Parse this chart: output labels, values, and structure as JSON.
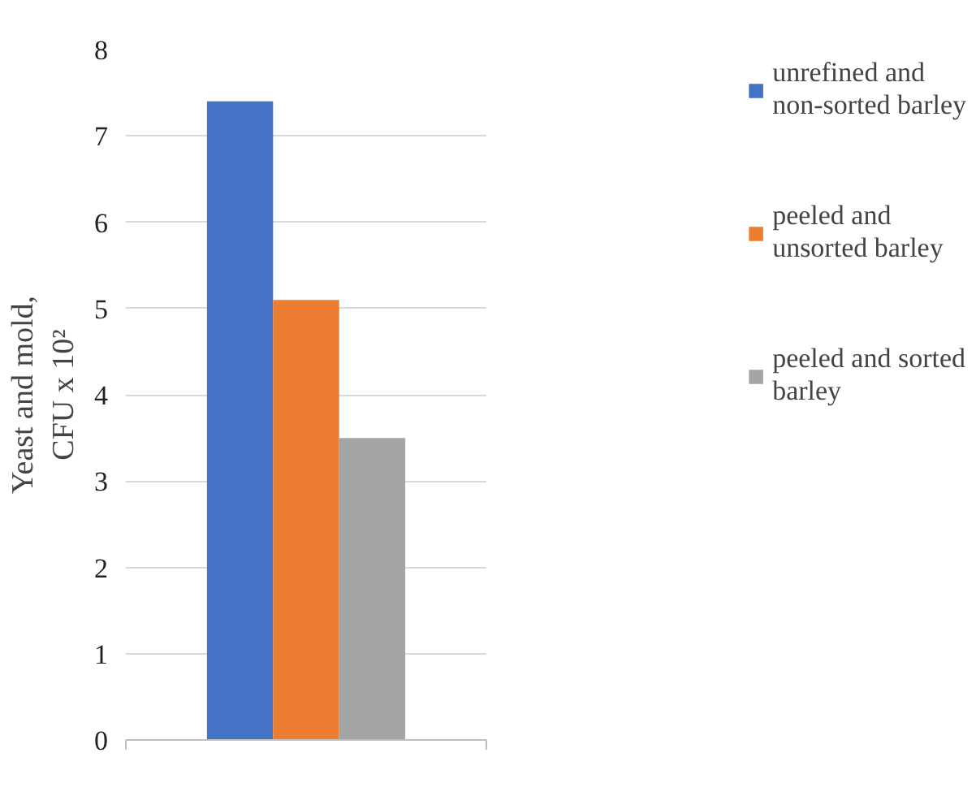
{
  "chart_data": {
    "type": "bar",
    "ylabel": "Yeast and mold, CFU x 10²",
    "categories": [
      null
    ],
    "series": [
      {
        "name": "unrefined and non-sorted barley",
        "color": "#4472c4",
        "values": [
          7.4
        ]
      },
      {
        "name": "peeled and unsorted barley",
        "color": "#ed7d31",
        "values": [
          5.1
        ]
      },
      {
        "name": "peeled and sorted barley",
        "color": "#a5a5a5",
        "values": [
          3.5
        ]
      }
    ],
    "ylim": [
      0,
      8
    ],
    "yticks": [
      0,
      1,
      2,
      3,
      4,
      5,
      6,
      7,
      8
    ],
    "grid": "y",
    "legend": "right"
  }
}
